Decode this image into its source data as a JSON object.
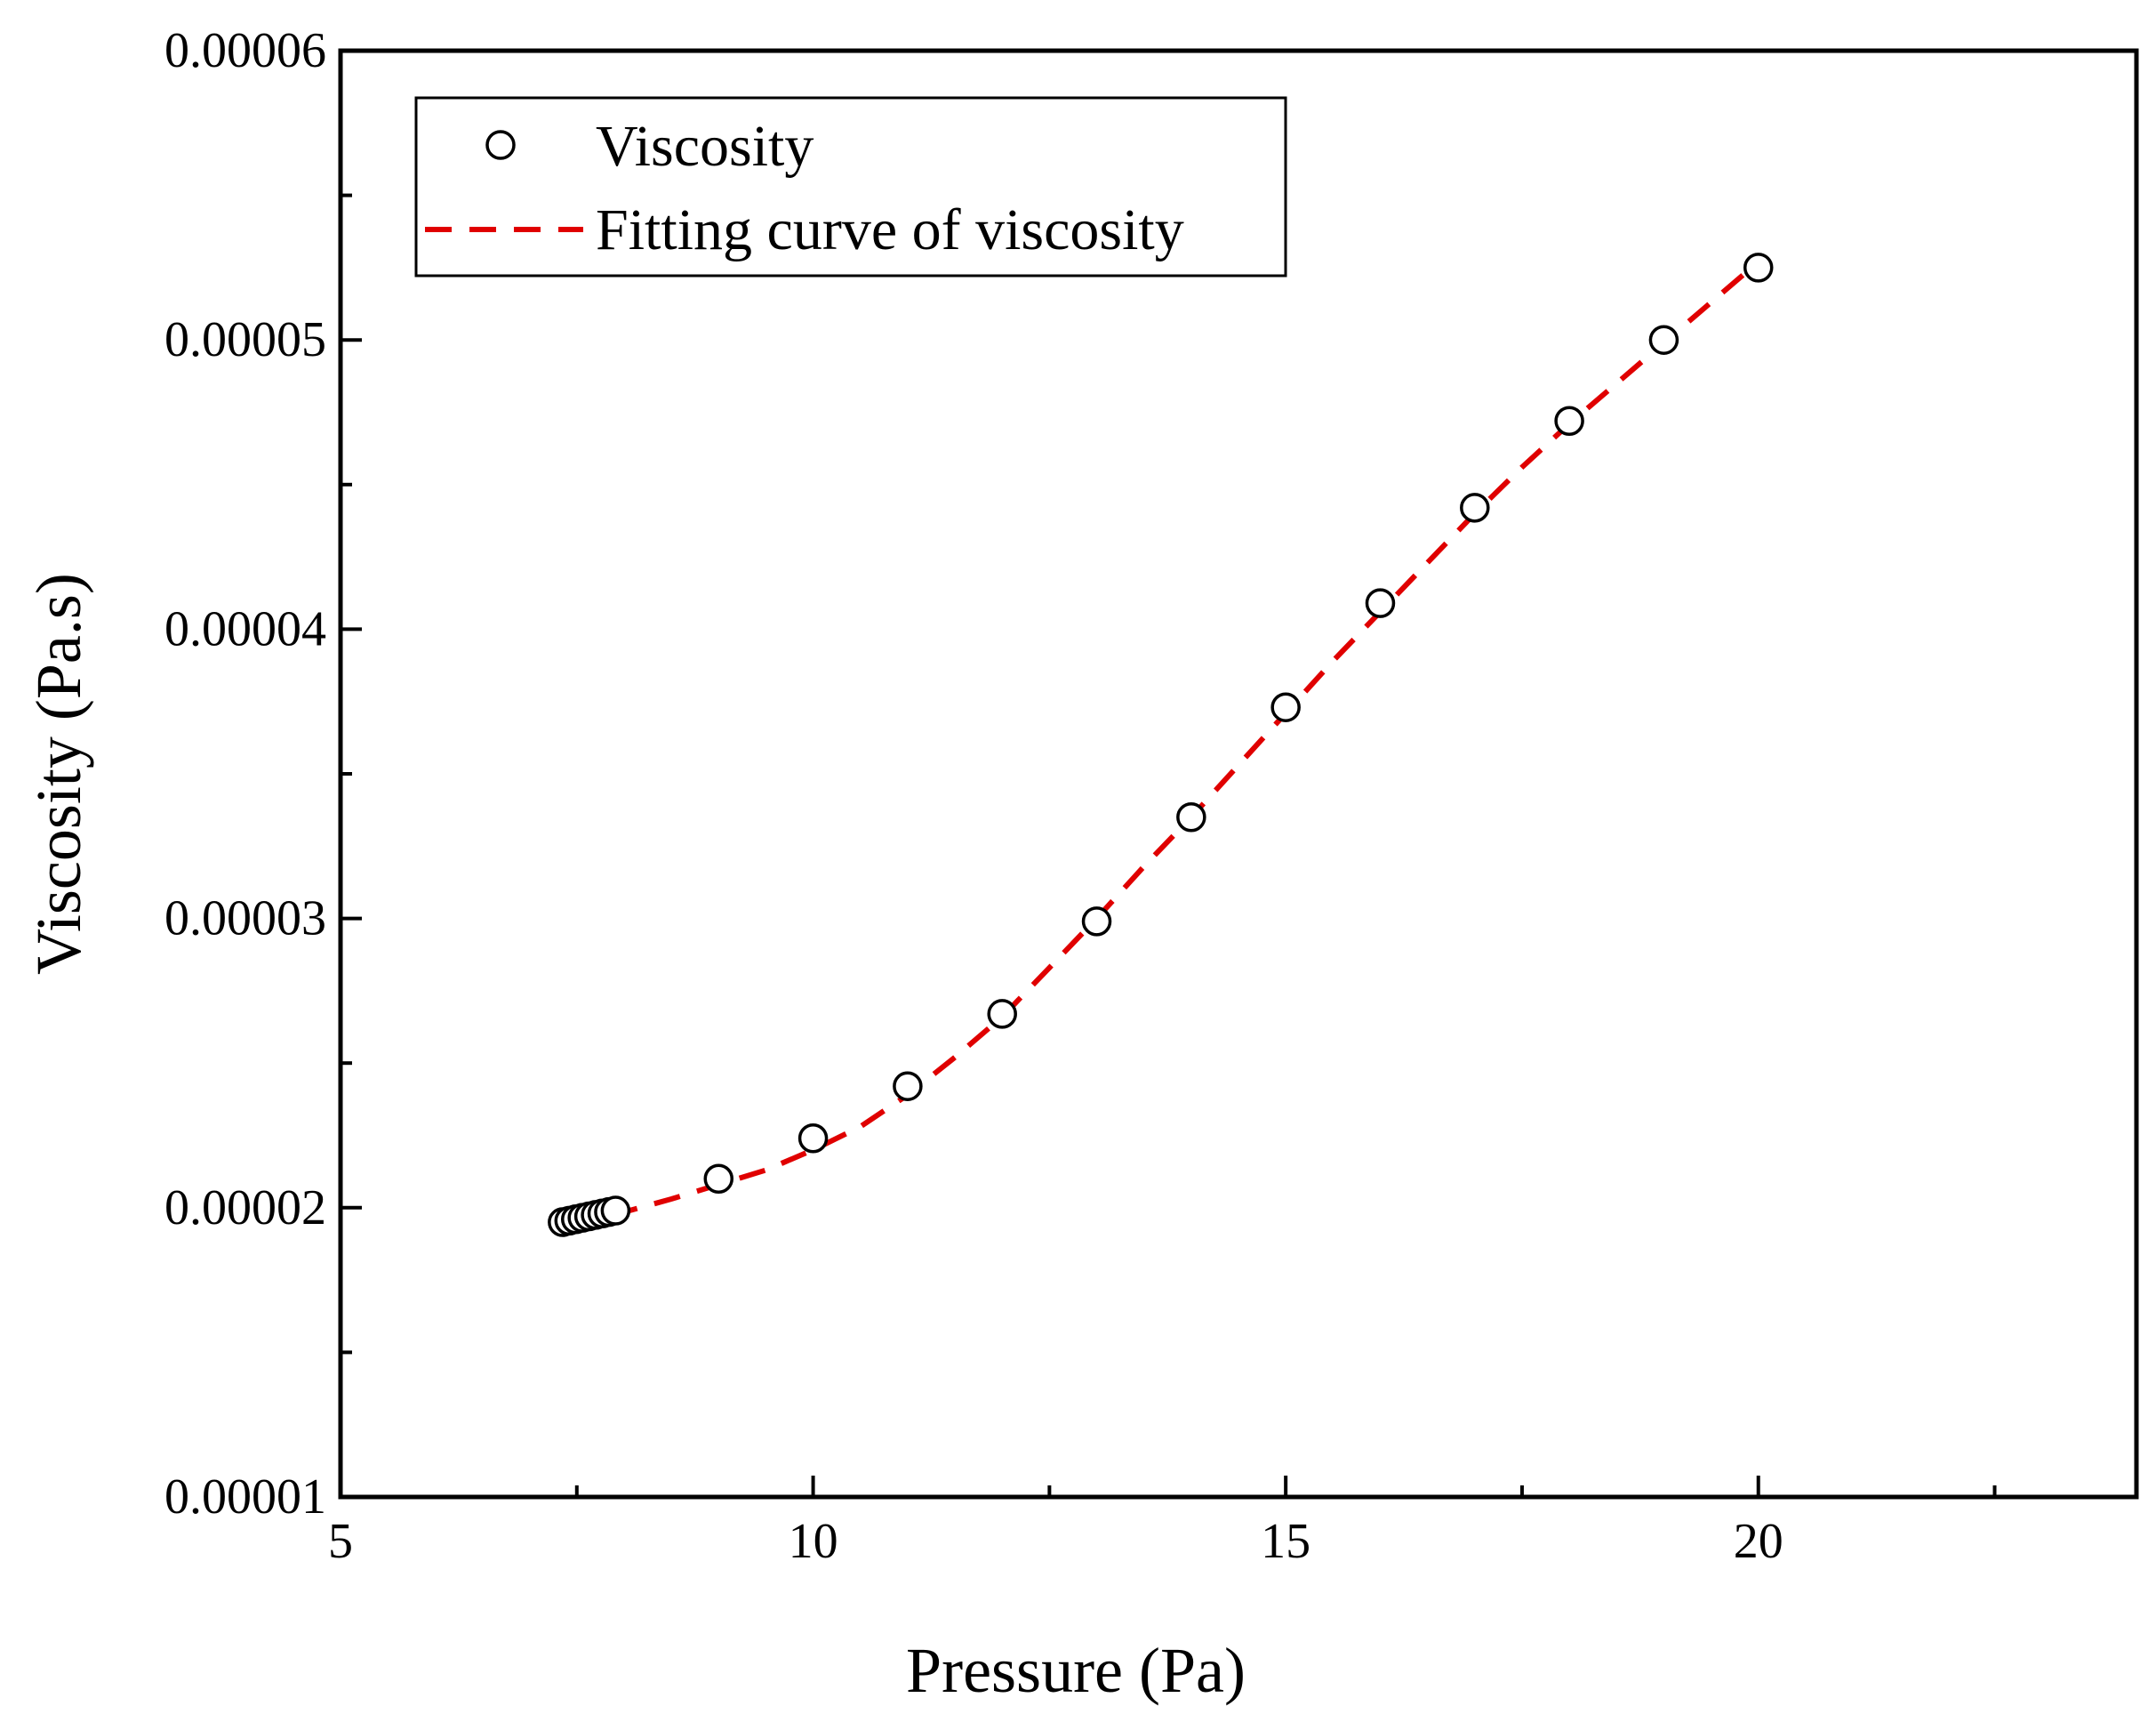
{
  "chart_data": {
    "type": "scatter",
    "xlabel": "Pressure (Pa)",
    "ylabel": "Viscosity (Pa.s)",
    "xlim": [
      5,
      24
    ],
    "ylim": [
      1e-05,
      6e-05
    ],
    "x_ticks": [
      5,
      10,
      15,
      20
    ],
    "x_minor_ticks": [
      7.5,
      12.5,
      17.5,
      22.5
    ],
    "y_ticks": [
      1e-05,
      2e-05,
      3e-05,
      4e-05,
      5e-05,
      6e-05
    ],
    "y_minor_ticks": [
      1.5e-05,
      2.5e-05,
      3.5e-05,
      4.5e-05,
      5.5e-05
    ],
    "x_tick_labels": [
      "5",
      "10",
      "15",
      "20"
    ],
    "y_tick_labels": [
      "0.00001",
      "0.00002",
      "0.00003",
      "0.00004",
      "0.00005",
      "0.00006"
    ],
    "legend_position": "top-left",
    "series": [
      {
        "name": "Viscosity",
        "kind": "scatter",
        "marker": "open-circle",
        "x": [
          7.35,
          7.42,
          7.49,
          7.56,
          7.63,
          7.7,
          7.77,
          7.84,
          7.91,
          9,
          10,
          11,
          12,
          13,
          14,
          15,
          16,
          17,
          18,
          19,
          20
        ],
        "y": [
          1.95e-05,
          1.955e-05,
          1.96e-05,
          1.965e-05,
          1.97e-05,
          1.975e-05,
          1.98e-05,
          1.985e-05,
          1.99e-05,
          2.1e-05,
          2.24e-05,
          2.42e-05,
          2.67e-05,
          2.99e-05,
          3.35e-05,
          3.73e-05,
          4.09e-05,
          4.42e-05,
          4.72e-05,
          5e-05,
          5.25e-05
        ]
      },
      {
        "name": "Fitting curve of viscosity",
        "kind": "line",
        "style": "dashed",
        "color": "#e00000",
        "x": [
          7.4,
          8,
          8.5,
          9,
          9.5,
          10,
          10.5,
          11,
          11.5,
          12,
          12.5,
          13,
          13.5,
          14,
          14.5,
          15,
          15.5,
          16,
          16.5,
          17,
          17.5,
          18,
          18.5,
          19,
          19.5,
          20
        ],
        "y": [
          1.95e-05,
          1.985e-05,
          2.03e-05,
          2.08e-05,
          2.13e-05,
          2.2e-05,
          2.28e-05,
          2.39e-05,
          2.52e-05,
          2.66e-05,
          2.83e-05,
          3e-05,
          3.18e-05,
          3.35e-05,
          3.53e-05,
          3.71e-05,
          3.89e-05,
          4.06e-05,
          4.23e-05,
          4.4e-05,
          4.56e-05,
          4.71e-05,
          4.85e-05,
          4.99e-05,
          5.13e-05,
          5.27e-05
        ]
      }
    ]
  }
}
